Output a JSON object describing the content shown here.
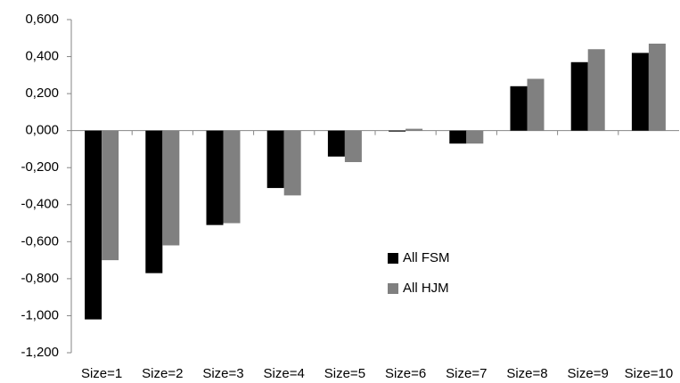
{
  "chart_data": {
    "type": "bar",
    "categories": [
      "Size=1",
      "Size=2",
      "Size=3",
      "Size=4",
      "Size=5",
      "Size=6",
      "Size=7",
      "Size=8",
      "Size=9",
      "Size=10"
    ],
    "series": [
      {
        "name": "All FSM",
        "color": "#000000",
        "values": [
          -1.02,
          -0.77,
          -0.51,
          -0.31,
          -0.14,
          -0.005,
          -0.07,
          0.24,
          0.37,
          0.42
        ]
      },
      {
        "name": "All HJM",
        "color": "#808080",
        "values": [
          -0.7,
          -0.62,
          -0.5,
          -0.35,
          -0.17,
          0.01,
          -0.07,
          0.28,
          0.44,
          0.47
        ]
      }
    ],
    "ylim": [
      -1.2,
      0.6
    ],
    "yticks": [
      {
        "value": -1.2,
        "label": "-1,200"
      },
      {
        "value": -1.0,
        "label": "-1,000"
      },
      {
        "value": -0.8,
        "label": "-0,800"
      },
      {
        "value": -0.6,
        "label": "-0,600"
      },
      {
        "value": -0.4,
        "label": "-0,400"
      },
      {
        "value": -0.2,
        "label": "-0,200"
      },
      {
        "value": 0,
        "label": "0,000"
      },
      {
        "value": 0.2,
        "label": "0,200"
      },
      {
        "value": 0.4,
        "label": "0,400"
      },
      {
        "value": 0.6,
        "label": "0,600"
      }
    ],
    "legend": "center",
    "grid": false
  }
}
